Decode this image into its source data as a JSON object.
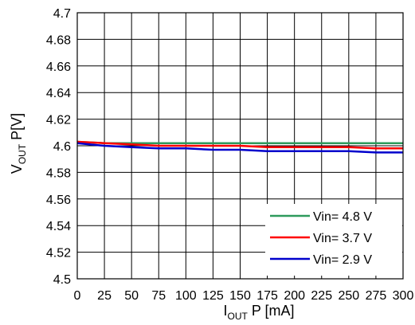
{
  "chart_data": {
    "type": "line",
    "title": "",
    "xlabel": {
      "main": "I",
      "sub": "OUT",
      "rest": " P [mA]"
    },
    "ylabel": {
      "main": "V",
      "sub": "OUT",
      "rest": " P[V]"
    },
    "xlim": [
      0,
      300
    ],
    "ylim": [
      4.5,
      4.7
    ],
    "xticks": [
      0,
      25,
      50,
      75,
      100,
      125,
      150,
      175,
      200,
      225,
      250,
      275,
      300
    ],
    "xtick_labels": [
      "0",
      "25",
      "50",
      "75",
      "100",
      "125",
      "150",
      "175",
      "200",
      "225",
      "250",
      "275",
      "300"
    ],
    "yticks": [
      4.5,
      4.52,
      4.54,
      4.56,
      4.58,
      4.6,
      4.62,
      4.64,
      4.66,
      4.68,
      4.7
    ],
    "ytick_labels": [
      "4.5",
      "4.52",
      "4.54",
      "4.56",
      "4.58",
      "4.6",
      "4.62",
      "4.64",
      "4.66",
      "4.68",
      "4.7"
    ],
    "grid": true,
    "legend_position": "bottom-right",
    "x": [
      0,
      25,
      50,
      75,
      100,
      125,
      150,
      175,
      200,
      225,
      250,
      275,
      300
    ],
    "series": [
      {
        "name": "Vin= 4.8 V",
        "color": "#2e9a5c",
        "values": [
          4.603,
          4.602,
          4.602,
          4.602,
          4.602,
          4.602,
          4.602,
          4.602,
          4.602,
          4.602,
          4.602,
          4.602,
          4.602
        ]
      },
      {
        "name": "Vin= 3.7 V",
        "color": "#ff0000",
        "values": [
          4.603,
          4.602,
          4.601,
          4.6,
          4.6,
          4.6,
          4.6,
          4.599,
          4.599,
          4.599,
          4.599,
          4.598,
          4.598
        ]
      },
      {
        "name": "Vin= 2.9 V",
        "color": "#0000cc",
        "values": [
          4.602,
          4.6,
          4.599,
          4.598,
          4.598,
          4.597,
          4.597,
          4.596,
          4.596,
          4.596,
          4.596,
          4.595,
          4.595
        ]
      }
    ]
  }
}
